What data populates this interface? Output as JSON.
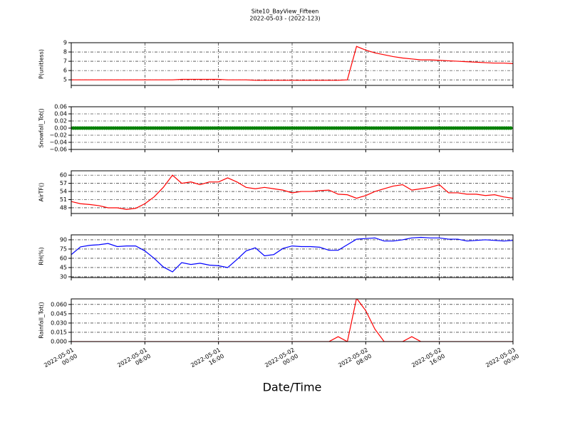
{
  "title": "Site10_BayView_Fifteen",
  "subtitle": "2022-05-03 - (2022-123)",
  "x_label": "Date/Time",
  "x": [
    "2022-05-01 00:00",
    "2022-05-01 01:00",
    "2022-05-01 02:00",
    "2022-05-01 03:00",
    "2022-05-01 04:00",
    "2022-05-01 05:00",
    "2022-05-01 06:00",
    "2022-05-01 07:00",
    "2022-05-01 08:00",
    "2022-05-01 09:00",
    "2022-05-01 10:00",
    "2022-05-01 11:00",
    "2022-05-01 12:00",
    "2022-05-01 13:00",
    "2022-05-01 14:00",
    "2022-05-01 15:00",
    "2022-05-01 16:00",
    "2022-05-01 17:00",
    "2022-05-01 18:00",
    "2022-05-01 19:00",
    "2022-05-01 20:00",
    "2022-05-01 21:00",
    "2022-05-01 22:00",
    "2022-05-01 23:00",
    "2022-05-02 00:00",
    "2022-05-02 01:00",
    "2022-05-02 02:00",
    "2022-05-02 03:00",
    "2022-05-02 04:00",
    "2022-05-02 05:00",
    "2022-05-02 06:00",
    "2022-05-02 07:00",
    "2022-05-02 08:00",
    "2022-05-02 09:00",
    "2022-05-02 10:00",
    "2022-05-02 11:00",
    "2022-05-02 12:00",
    "2022-05-02 13:00",
    "2022-05-02 14:00",
    "2022-05-02 15:00",
    "2022-05-02 16:00",
    "2022-05-02 17:00",
    "2022-05-02 18:00",
    "2022-05-02 19:00",
    "2022-05-02 20:00",
    "2022-05-02 21:00",
    "2022-05-02 22:00",
    "2022-05-02 23:00",
    "2022-05-03 00:00"
  ],
  "xlim": [
    "2022-05-01 00:00",
    "2022-05-03 00:00"
  ],
  "xticks": [
    {
      "value": "2022-05-01 00:00",
      "label": "2022-05-01\n00:00"
    },
    {
      "value": "2022-05-01 08:00",
      "label": "2022-05-01\n08:00"
    },
    {
      "value": "2022-05-01 16:00",
      "label": "2022-05-01\n16:00"
    },
    {
      "value": "2022-05-02 00:00",
      "label": "2022-05-02\n00:00"
    },
    {
      "value": "2022-05-02 08:00",
      "label": "2022-05-02\n08:00"
    },
    {
      "value": "2022-05-02 16:00",
      "label": "2022-05-02\n16:00"
    },
    {
      "value": "2022-05-03 00:00",
      "label": "2022-05-03\n00:00"
    }
  ],
  "chart_data": [
    {
      "type": "line",
      "y_label": "P(unitless)",
      "color": "#ff0000",
      "grid": true,
      "ylim": [
        4.4,
        9.0
      ],
      "yticks": [
        5,
        6,
        7,
        8,
        9
      ],
      "values": [
        5.0,
        5.0,
        5.0,
        5.0,
        5.0,
        5.0,
        5.0,
        5.0,
        5.0,
        5.0,
        5.0,
        5.0,
        5.05,
        5.05,
        5.05,
        5.05,
        5.05,
        5.0,
        5.0,
        5.0,
        4.95,
        4.95,
        4.95,
        4.95,
        4.95,
        4.95,
        4.95,
        4.95,
        4.95,
        4.95,
        5.0,
        8.6,
        8.2,
        7.9,
        7.7,
        7.5,
        7.35,
        7.25,
        7.15,
        7.15,
        7.1,
        7.05,
        7.0,
        6.95,
        6.9,
        6.85,
        6.8,
        6.8,
        6.75
      ]
    },
    {
      "type": "line",
      "y_label": "Snowfall_Tot()",
      "color": "#008000",
      "grid": true,
      "marker": "dots",
      "ylim": [
        -0.06,
        0.06
      ],
      "yticks": [
        {
          "value": -0.06,
          "label": "−0.06"
        },
        {
          "value": -0.04,
          "label": "−0.04"
        },
        {
          "value": -0.02,
          "label": "−0.02"
        },
        {
          "value": 0,
          "label": "0.00"
        },
        0.02,
        0.04,
        0.06
      ],
      "values": [
        0,
        0,
        0,
        0,
        0,
        0,
        0,
        0,
        0,
        0,
        0,
        0,
        0,
        0,
        0,
        0,
        0,
        0,
        0,
        0,
        0,
        0,
        0,
        0,
        0,
        0,
        0,
        0,
        0,
        0,
        0,
        0,
        0,
        0,
        0,
        0,
        0,
        0,
        0,
        0,
        0,
        0,
        0,
        0,
        0,
        0,
        0,
        0,
        0
      ]
    },
    {
      "type": "line",
      "y_label": "AirTF()",
      "color": "#ff0000",
      "grid": true,
      "ylim": [
        45.9,
        61.6
      ],
      "yticks": [
        48,
        51,
        54,
        57,
        60
      ],
      "values": [
        50.3,
        49.5,
        49.2,
        48.8,
        48.0,
        48.0,
        47.4,
        47.8,
        49.5,
        52,
        55.5,
        60,
        57,
        57.5,
        56.5,
        57.5,
        57.5,
        59,
        57.5,
        55.5,
        55.0,
        55.5,
        55,
        54.5,
        53.5,
        54,
        54,
        54.3,
        54.5,
        53,
        52.8,
        51.5,
        52.5,
        54,
        55,
        56,
        56.5,
        54.5,
        55,
        55.5,
        56.5,
        53.5,
        53.5,
        53.0,
        53,
        52.5,
        52.8,
        52,
        51.5
      ]
    },
    {
      "type": "line",
      "y_label": "RH(%)",
      "color": "#0000ff",
      "grid": true,
      "ylim": [
        28.8,
        98
      ],
      "yticks": [
        30,
        45,
        60,
        75,
        90
      ],
      "values": [
        66,
        78.5,
        81,
        82,
        84,
        79,
        80,
        80,
        72,
        60,
        46,
        38,
        53,
        50,
        52,
        49,
        48,
        45,
        58,
        72,
        77,
        64,
        66,
        76,
        80,
        79,
        79,
        78,
        73,
        73,
        82,
        91,
        92,
        93,
        88,
        88,
        90,
        93,
        94,
        93,
        93,
        91,
        91,
        88,
        89,
        90,
        89,
        88,
        89
      ]
    },
    {
      "type": "line",
      "y_label": "Rainfall_Tot()",
      "color": "#ff0000",
      "grid": true,
      "ylim": [
        0,
        0.069
      ],
      "yticks": [
        {
          "value": 0,
          "label": "0.000"
        },
        0.015,
        {
          "value": 0.03,
          "label": "0.030"
        },
        0.045,
        {
          "value": 0.06,
          "label": "0.060"
        }
      ],
      "values": [
        0,
        0,
        0,
        0,
        0,
        0,
        0,
        0,
        0,
        0,
        0,
        0,
        0,
        0,
        0,
        0,
        0,
        0,
        0,
        0,
        0,
        0,
        0,
        0,
        0,
        0,
        0,
        0,
        0,
        0.008,
        0,
        0.07,
        0.05,
        0.02,
        0,
        0,
        0,
        0.008,
        0,
        0,
        0,
        0,
        0,
        0,
        0,
        0,
        0,
        0,
        0
      ]
    }
  ]
}
